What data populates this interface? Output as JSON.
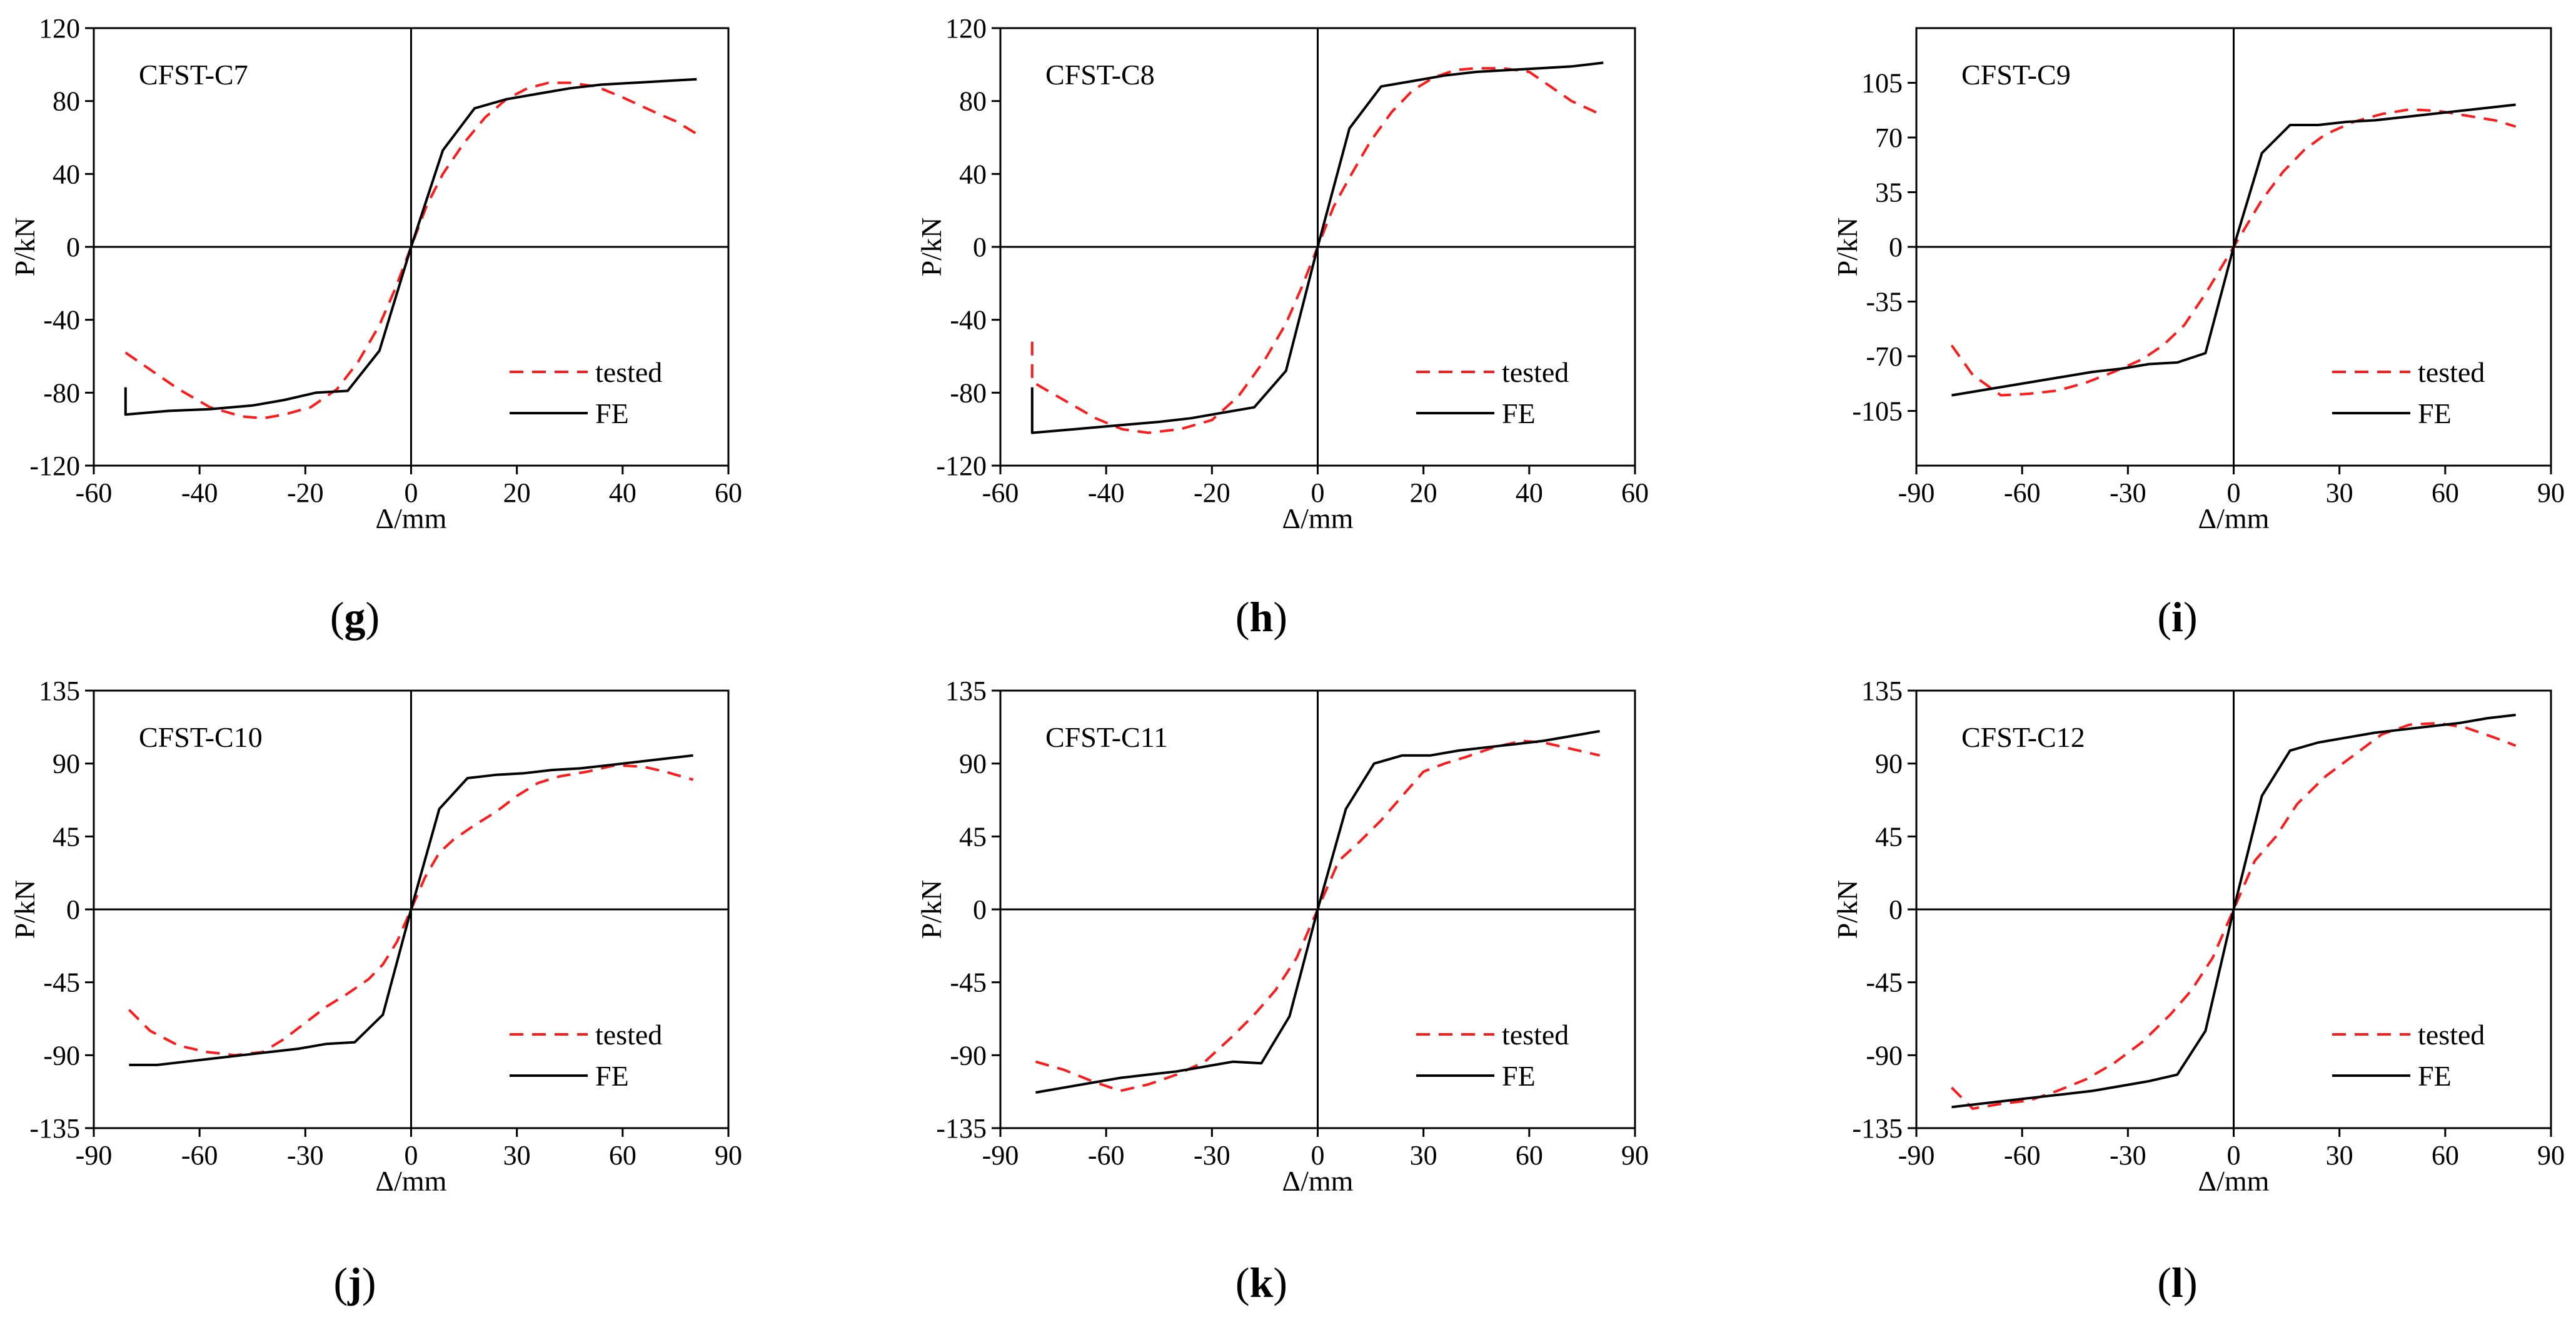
{
  "colors": {
    "tested": "#ff1a1a",
    "fe": "#000000",
    "axis": "#000000"
  },
  "chart_data": [
    {
      "type": "line",
      "panel": "g",
      "title": "CFST-C7",
      "xlabel": "Δ/mm",
      "ylabel": "P/kN",
      "xlim": [
        -60,
        60
      ],
      "ylim": [
        -120,
        120
      ],
      "xticks": [
        -60,
        -40,
        -20,
        0,
        20,
        40,
        60
      ],
      "yticks": [
        -120,
        -80,
        -40,
        0,
        40,
        80,
        120
      ],
      "legend": [
        "tested",
        "FE"
      ],
      "legend_position": "lower-right",
      "series": [
        {
          "name": "tested",
          "style": "dashed",
          "x": [
            -54,
            -50,
            -44,
            -38,
            -32,
            -28,
            -24,
            -19,
            -14,
            -10,
            -6,
            -3,
            0,
            3,
            6,
            10,
            14,
            18,
            22,
            26,
            30,
            35,
            40,
            46,
            50,
            54
          ],
          "y": [
            -58,
            -66,
            -78,
            -88,
            -93,
            -94,
            -92,
            -88,
            -78,
            -63,
            -43,
            -23,
            0,
            23,
            40,
            57,
            71,
            81,
            87,
            90,
            90,
            88,
            82,
            74,
            69,
            62
          ]
        },
        {
          "name": "FE",
          "style": "solid",
          "x": [
            -54,
            -54,
            -46,
            -38,
            -30,
            -24,
            -18,
            -12,
            -6,
            0,
            6,
            12,
            18,
            24,
            30,
            36,
            42,
            48,
            54
          ],
          "y": [
            -77,
            -92,
            -90,
            -89,
            -87,
            -84,
            -80,
            -79,
            -57,
            0,
            53,
            76,
            81,
            84,
            87,
            89,
            90,
            91,
            92
          ]
        }
      ]
    },
    {
      "type": "line",
      "panel": "h",
      "title": "CFST-C8",
      "xlabel": "Δ/mm",
      "ylabel": "P/kN",
      "xlim": [
        -60,
        60
      ],
      "ylim": [
        -120,
        120
      ],
      "xticks": [
        -60,
        -40,
        -20,
        0,
        20,
        40,
        60
      ],
      "yticks": [
        -120,
        -80,
        -40,
        0,
        40,
        80,
        120
      ],
      "legend": [
        "tested",
        "FE"
      ],
      "legend_position": "lower-right",
      "series": [
        {
          "name": "tested",
          "style": "dashed",
          "x": [
            -54,
            -54,
            -48,
            -42,
            -37,
            -32,
            -26,
            -20,
            -15,
            -10,
            -6,
            -3,
            0,
            3,
            6,
            10,
            14,
            18,
            22,
            26,
            30,
            35,
            40,
            44,
            48,
            54
          ],
          "y": [
            -52,
            -74,
            -84,
            -94,
            -100,
            -102,
            -100,
            -95,
            -82,
            -62,
            -42,
            -22,
            0,
            22,
            38,
            58,
            74,
            86,
            93,
            97,
            98,
            98,
            96,
            88,
            80,
            72
          ]
        },
        {
          "name": "FE",
          "style": "solid",
          "x": [
            -54,
            -54,
            -46,
            -38,
            -30,
            -24,
            -18,
            -12,
            -6,
            0,
            6,
            12,
            18,
            24,
            30,
            36,
            42,
            48,
            54
          ],
          "y": [
            -77,
            -102,
            -100,
            -98,
            -96,
            -94,
            -91,
            -88,
            -68,
            0,
            65,
            88,
            91,
            94,
            96,
            97,
            98,
            99,
            101
          ]
        }
      ]
    },
    {
      "type": "line",
      "panel": "i",
      "title": "CFST-C9",
      "xlabel": "Δ/mm",
      "ylabel": "P/kN",
      "xlim": [
        -90,
        90
      ],
      "ylim": [
        -140,
        140
      ],
      "xticks": [
        -90,
        -60,
        -30,
        0,
        30,
        60,
        90
      ],
      "yticks": [
        -105,
        -70,
        -35,
        0,
        35,
        70,
        105
      ],
      "legend": [
        "tested",
        "FE"
      ],
      "legend_position": "lower-right",
      "series": [
        {
          "name": "tested",
          "style": "dashed",
          "x": [
            -80,
            -74,
            -66,
            -58,
            -50,
            -42,
            -34,
            -26,
            -20,
            -14,
            -8,
            -4,
            0,
            4,
            8,
            14,
            20,
            26,
            34,
            42,
            50,
            58,
            66,
            74,
            80
          ],
          "y": [
            -63,
            -82,
            -95,
            -94,
            -92,
            -87,
            -80,
            -72,
            -63,
            -50,
            -30,
            -15,
            0,
            15,
            30,
            48,
            62,
            72,
            80,
            85,
            88,
            87,
            84,
            81,
            77
          ]
        },
        {
          "name": "FE",
          "style": "solid",
          "x": [
            -80,
            -72,
            -64,
            -56,
            -48,
            -40,
            -32,
            -24,
            -16,
            -8,
            0,
            8,
            16,
            24,
            32,
            40,
            48,
            56,
            64,
            72,
            80
          ],
          "y": [
            -95,
            -92,
            -89,
            -86,
            -83,
            -80,
            -78,
            -75,
            -74,
            -68,
            0,
            60,
            78,
            78,
            80,
            81,
            83,
            85,
            87,
            89,
            91
          ]
        }
      ]
    },
    {
      "type": "line",
      "panel": "j",
      "title": "CFST-C10",
      "xlabel": "Δ/mm",
      "ylabel": "P/kN",
      "xlim": [
        -90,
        90
      ],
      "ylim": [
        -135,
        135
      ],
      "xticks": [
        -90,
        -60,
        -30,
        0,
        30,
        60,
        90
      ],
      "yticks": [
        -135,
        -90,
        -45,
        0,
        45,
        90,
        135
      ],
      "legend": [
        "tested",
        "FE"
      ],
      "legend_position": "lower-right",
      "series": [
        {
          "name": "tested",
          "style": "dashed",
          "x": [
            -80,
            -74,
            -66,
            -58,
            -50,
            -42,
            -36,
            -30,
            -24,
            -18,
            -12,
            -8,
            -4,
            0,
            4,
            8,
            12,
            18,
            24,
            30,
            36,
            42,
            50,
            58,
            66,
            72,
            80
          ],
          "y": [
            -62,
            -75,
            -84,
            -88,
            -90,
            -88,
            -80,
            -70,
            -60,
            -52,
            -43,
            -34,
            -20,
            0,
            20,
            35,
            43,
            52,
            60,
            70,
            78,
            82,
            85,
            89,
            88,
            85,
            80
          ]
        },
        {
          "name": "FE",
          "style": "solid",
          "x": [
            -80,
            -72,
            -64,
            -56,
            -48,
            -40,
            -32,
            -24,
            -16,
            -8,
            0,
            8,
            16,
            24,
            32,
            40,
            48,
            56,
            64,
            72,
            80
          ],
          "y": [
            -96,
            -96,
            -94,
            -92,
            -90,
            -88,
            -86,
            -83,
            -82,
            -65,
            0,
            62,
            81,
            83,
            84,
            86,
            87,
            89,
            91,
            93,
            95
          ]
        }
      ]
    },
    {
      "type": "line",
      "panel": "k",
      "title": "CFST-C11",
      "xlabel": "Δ/mm",
      "ylabel": "P/kN",
      "xlim": [
        -90,
        90
      ],
      "ylim": [
        -135,
        135
      ],
      "xticks": [
        -90,
        -60,
        -30,
        0,
        30,
        60,
        90
      ],
      "yticks": [
        -135,
        -90,
        -45,
        0,
        45,
        90,
        135
      ],
      "legend": [
        "tested",
        "FE"
      ],
      "legend_position": "lower-right",
      "series": [
        {
          "name": "tested",
          "style": "dashed",
          "x": [
            -80,
            -72,
            -64,
            -56,
            -48,
            -40,
            -32,
            -24,
            -18,
            -12,
            -6,
            0,
            6,
            12,
            18,
            24,
            30,
            36,
            42,
            50,
            58,
            64,
            72,
            80
          ],
          "y": [
            -94,
            -99,
            -106,
            -112,
            -108,
            -102,
            -94,
            -78,
            -65,
            -50,
            -30,
            0,
            30,
            42,
            55,
            70,
            85,
            90,
            94,
            100,
            104,
            103,
            99,
            95
          ]
        },
        {
          "name": "FE",
          "style": "solid",
          "x": [
            -80,
            -72,
            -64,
            -56,
            -48,
            -40,
            -32,
            -24,
            -16,
            -8,
            0,
            8,
            16,
            24,
            32,
            40,
            48,
            56,
            64,
            72,
            80
          ],
          "y": [
            -113,
            -110,
            -107,
            -104,
            -102,
            -100,
            -97,
            -94,
            -95,
            -66,
            0,
            62,
            90,
            95,
            95,
            98,
            100,
            102,
            104,
            107,
            110
          ]
        }
      ]
    },
    {
      "type": "line",
      "panel": "l",
      "title": "CFST-C12",
      "xlabel": "Δ/mm",
      "ylabel": "P/kN",
      "xlim": [
        -90,
        90
      ],
      "ylim": [
        -135,
        135
      ],
      "xticks": [
        -90,
        -60,
        -30,
        0,
        30,
        60,
        90
      ],
      "yticks": [
        -135,
        -90,
        -45,
        0,
        45,
        90,
        135
      ],
      "legend": [
        "tested",
        "FE"
      ],
      "legend_position": "lower-right",
      "series": [
        {
          "name": "tested",
          "style": "dashed",
          "x": [
            -80,
            -74,
            -66,
            -58,
            -50,
            -42,
            -34,
            -26,
            -18,
            -12,
            -6,
            0,
            6,
            12,
            18,
            26,
            34,
            42,
            50,
            58,
            66,
            74,
            80
          ],
          "y": [
            -110,
            -123,
            -120,
            -118,
            -112,
            -105,
            -95,
            -82,
            -65,
            -50,
            -30,
            0,
            30,
            45,
            65,
            82,
            95,
            108,
            114,
            115,
            112,
            106,
            101
          ]
        },
        {
          "name": "FE",
          "style": "solid",
          "x": [
            -80,
            -72,
            -64,
            -56,
            -48,
            -40,
            -32,
            -24,
            -16,
            -8,
            0,
            8,
            16,
            24,
            32,
            40,
            48,
            56,
            64,
            72,
            80
          ],
          "y": [
            -122,
            -120,
            -118,
            -116,
            -114,
            -112,
            -109,
            -106,
            -102,
            -75,
            0,
            70,
            98,
            103,
            106,
            109,
            111,
            113,
            115,
            118,
            120
          ]
        }
      ]
    }
  ]
}
